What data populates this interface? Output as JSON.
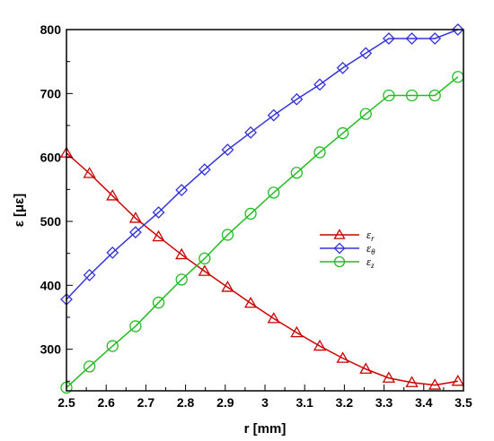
{
  "chart_data": {
    "type": "line",
    "xlabel": "r [mm]",
    "ylabel": "ε [με]",
    "xlim": [
      2.5,
      3.5
    ],
    "ylim": [
      235,
      800
    ],
    "x_ticks": [
      "2.5",
      "2.6",
      "2.7",
      "2.8",
      "2.9",
      "3",
      "3.1",
      "3.2",
      "3.3",
      "3.4",
      "3.5"
    ],
    "y_ticks": [
      "300",
      "400",
      "500",
      "600",
      "700",
      "800"
    ],
    "grid": false,
    "legend_position": "center-right",
    "series": [
      {
        "name": "ε",
        "subscript": "r",
        "color": "#cc0000",
        "marker": "triangle",
        "x": [
          2.5,
          2.558,
          2.616,
          2.674,
          2.732,
          2.79,
          2.848,
          2.906,
          2.964,
          3.022,
          3.08,
          3.138,
          3.196,
          3.254,
          3.312,
          3.37,
          3.428,
          3.486
        ],
        "y": [
          607,
          575,
          540,
          505,
          476,
          448,
          422,
          397,
          372,
          348,
          326,
          305,
          286,
          269,
          255,
          248,
          244,
          250
        ]
      },
      {
        "name": "ε",
        "subscript": "θ",
        "color": "#3333dd",
        "marker": "diamond",
        "x": [
          2.5,
          2.558,
          2.616,
          2.674,
          2.732,
          2.79,
          2.848,
          2.906,
          2.964,
          3.022,
          3.08,
          3.138,
          3.196,
          3.254,
          3.312,
          3.37,
          3.428,
          3.486
        ],
        "y": [
          378,
          416,
          451,
          483,
          514,
          549,
          581,
          612,
          639,
          666,
          691,
          714,
          740,
          763,
          786,
          786,
          786,
          800
        ]
      },
      {
        "name": "ε",
        "subscript": "z",
        "color": "#22bb22",
        "marker": "circle",
        "x": [
          2.5,
          2.558,
          2.616,
          2.674,
          2.732,
          2.79,
          2.848,
          2.906,
          2.964,
          3.022,
          3.08,
          3.138,
          3.196,
          3.254,
          3.312,
          3.37,
          3.428,
          3.486
        ],
        "y": [
          240,
          273,
          305,
          336,
          373,
          409,
          442,
          479,
          512,
          545,
          576,
          608,
          638,
          668,
          697,
          697,
          697,
          726
        ]
      }
    ]
  }
}
